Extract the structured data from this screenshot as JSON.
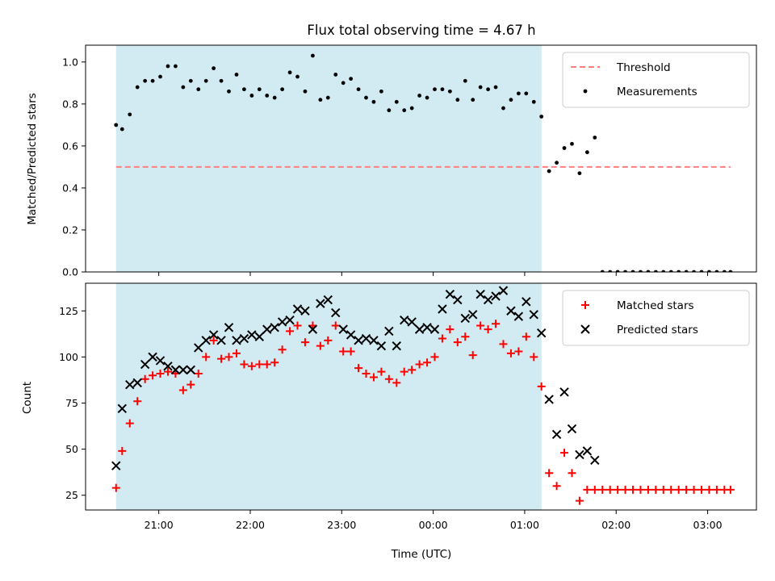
{
  "chart_data": {
    "title": "Flux total observing time = 4.67 h",
    "xlabel": "Time (UTC)",
    "x_ticks": [
      "21:00",
      "22:00",
      "23:00",
      "00:00",
      "01:00",
      "02:00",
      "03:00"
    ],
    "colors": {
      "highlight": "#add8e6",
      "threshold": "#ff7f7f",
      "measurements": "#000000",
      "matched": "#ff0000",
      "predicted": "#000000"
    },
    "panels": [
      {
        "type": "scatter",
        "ylabel": "Matched/Predicted stars",
        "ylim": [
          0,
          1.08
        ],
        "yticks": [
          "0.0",
          "0.2",
          "0.4",
          "0.6",
          "0.8",
          "1.0"
        ],
        "ytick_values": [
          0,
          0.2,
          0.4,
          0.6,
          0.8,
          1.0
        ],
        "legend_position": "top-right",
        "highlight_span": [
          "20:32",
          "01:11"
        ],
        "threshold": {
          "name": "Threshold",
          "value": 0.5,
          "x_range": [
            "20:32",
            "03:15"
          ]
        },
        "series": [
          {
            "name": "Measurements",
            "marker": "dot",
            "points": [
              [
                "20:32",
                0.7
              ],
              [
                "20:36",
                0.68
              ],
              [
                "20:41",
                0.75
              ],
              [
                "20:46",
                0.88
              ],
              [
                "20:51",
                0.91
              ],
              [
                "20:56",
                0.91
              ],
              [
                "21:01",
                0.93
              ],
              [
                "21:06",
                0.98
              ],
              [
                "21:11",
                0.98
              ],
              [
                "21:16",
                0.88
              ],
              [
                "21:21",
                0.91
              ],
              [
                "21:26",
                0.87
              ],
              [
                "21:31",
                0.91
              ],
              [
                "21:36",
                0.97
              ],
              [
                "21:41",
                0.91
              ],
              [
                "21:46",
                0.86
              ],
              [
                "21:51",
                0.94
              ],
              [
                "21:56",
                0.87
              ],
              [
                "22:01",
                0.84
              ],
              [
                "22:06",
                0.87
              ],
              [
                "22:11",
                0.84
              ],
              [
                "22:16",
                0.83
              ],
              [
                "22:21",
                0.87
              ],
              [
                "22:26",
                0.95
              ],
              [
                "22:31",
                0.93
              ],
              [
                "22:36",
                0.86
              ],
              [
                "22:41",
                1.03
              ],
              [
                "22:46",
                0.82
              ],
              [
                "22:51",
                0.83
              ],
              [
                "22:56",
                0.94
              ],
              [
                "23:01",
                0.9
              ],
              [
                "23:06",
                0.92
              ],
              [
                "23:11",
                0.87
              ],
              [
                "23:16",
                0.83
              ],
              [
                "23:21",
                0.81
              ],
              [
                "23:26",
                0.86
              ],
              [
                "23:31",
                0.77
              ],
              [
                "23:36",
                0.81
              ],
              [
                "23:41",
                0.77
              ],
              [
                "23:46",
                0.78
              ],
              [
                "23:51",
                0.84
              ],
              [
                "23:56",
                0.83
              ],
              [
                "00:01",
                0.87
              ],
              [
                "00:06",
                0.87
              ],
              [
                "00:11",
                0.86
              ],
              [
                "00:16",
                0.82
              ],
              [
                "00:21",
                0.91
              ],
              [
                "00:26",
                0.82
              ],
              [
                "00:31",
                0.88
              ],
              [
                "00:36",
                0.87
              ],
              [
                "00:41",
                0.88
              ],
              [
                "00:46",
                0.78
              ],
              [
                "00:51",
                0.82
              ],
              [
                "00:56",
                0.85
              ],
              [
                "01:01",
                0.85
              ],
              [
                "01:06",
                0.81
              ],
              [
                "01:11",
                0.74
              ],
              [
                "01:16",
                0.48
              ],
              [
                "01:21",
                0.52
              ],
              [
                "01:26",
                0.59
              ],
              [
                "01:31",
                0.61
              ],
              [
                "01:36",
                0.47
              ],
              [
                "01:41",
                0.57
              ],
              [
                "01:46",
                0.64
              ],
              [
                "01:51",
                0.0
              ],
              [
                "01:56",
                0.0
              ],
              [
                "02:01",
                0.0
              ],
              [
                "02:06",
                0.0
              ],
              [
                "02:11",
                0.0
              ],
              [
                "02:16",
                0.0
              ],
              [
                "02:21",
                0.0
              ],
              [
                "02:26",
                0.0
              ],
              [
                "02:31",
                0.0
              ],
              [
                "02:36",
                0.0
              ],
              [
                "02:41",
                0.0
              ],
              [
                "02:46",
                0.0
              ],
              [
                "02:51",
                0.0
              ],
              [
                "02:56",
                0.0
              ],
              [
                "03:01",
                0.0
              ],
              [
                "03:06",
                0.0
              ],
              [
                "03:11",
                0.0
              ],
              [
                "03:15",
                0.0
              ]
            ]
          }
        ]
      },
      {
        "type": "scatter",
        "ylabel": "Count",
        "ylim": [
          17,
          140
        ],
        "yticks": [
          "25",
          "50",
          "75",
          "100",
          "125"
        ],
        "ytick_values": [
          25,
          50,
          75,
          100,
          125
        ],
        "legend_position": "top-right",
        "highlight_span": [
          "20:32",
          "01:11"
        ],
        "series": [
          {
            "name": "Matched stars",
            "marker": "plus",
            "points": [
              [
                "20:32",
                29
              ],
              [
                "20:36",
                49
              ],
              [
                "20:41",
                64
              ],
              [
                "20:46",
                76
              ],
              [
                "20:51",
                88
              ],
              [
                "20:56",
                90
              ],
              [
                "21:01",
                91
              ],
              [
                "21:06",
                92
              ],
              [
                "21:11",
                91
              ],
              [
                "21:16",
                82
              ],
              [
                "21:21",
                85
              ],
              [
                "21:26",
                91
              ],
              [
                "21:31",
                100
              ],
              [
                "21:36",
                109
              ],
              [
                "21:41",
                99
              ],
              [
                "21:46",
                100
              ],
              [
                "21:51",
                102
              ],
              [
                "21:56",
                96
              ],
              [
                "22:01",
                95
              ],
              [
                "22:06",
                96
              ],
              [
                "22:11",
                96
              ],
              [
                "22:16",
                97
              ],
              [
                "22:21",
                104
              ],
              [
                "22:26",
                114
              ],
              [
                "22:31",
                117
              ],
              [
                "22:36",
                108
              ],
              [
                "22:41",
                117
              ],
              [
                "22:46",
                106
              ],
              [
                "22:51",
                109
              ],
              [
                "22:56",
                117
              ],
              [
                "23:01",
                103
              ],
              [
                "23:06",
                103
              ],
              [
                "23:11",
                94
              ],
              [
                "23:16",
                91
              ],
              [
                "23:21",
                89
              ],
              [
                "23:26",
                92
              ],
              [
                "23:31",
                88
              ],
              [
                "23:36",
                86
              ],
              [
                "23:41",
                92
              ],
              [
                "23:46",
                93
              ],
              [
                "23:51",
                96
              ],
              [
                "23:56",
                97
              ],
              [
                "00:01",
                100
              ],
              [
                "00:06",
                110
              ],
              [
                "00:11",
                115
              ],
              [
                "00:16",
                108
              ],
              [
                "00:21",
                111
              ],
              [
                "00:26",
                101
              ],
              [
                "00:31",
                117
              ],
              [
                "00:36",
                115
              ],
              [
                "00:41",
                118
              ],
              [
                "00:46",
                107
              ],
              [
                "00:51",
                102
              ],
              [
                "00:56",
                103
              ],
              [
                "01:01",
                111
              ],
              [
                "01:06",
                100
              ],
              [
                "01:11",
                84
              ],
              [
                "01:16",
                37
              ],
              [
                "01:21",
                30
              ],
              [
                "01:26",
                48
              ],
              [
                "01:31",
                37
              ],
              [
                "01:36",
                22
              ],
              [
                "01:41",
                28
              ],
              [
                "01:46",
                28
              ],
              [
                "01:51",
                28
              ],
              [
                "01:56",
                28
              ],
              [
                "02:01",
                28
              ],
              [
                "02:06",
                28
              ],
              [
                "02:11",
                28
              ],
              [
                "02:16",
                28
              ],
              [
                "02:21",
                28
              ],
              [
                "02:26",
                28
              ],
              [
                "02:31",
                28
              ],
              [
                "02:36",
                28
              ],
              [
                "02:41",
                28
              ],
              [
                "02:46",
                28
              ],
              [
                "02:51",
                28
              ],
              [
                "02:56",
                28
              ],
              [
                "03:01",
                28
              ],
              [
                "03:06",
                28
              ],
              [
                "03:11",
                28
              ],
              [
                "03:15",
                28
              ]
            ]
          },
          {
            "name": "Predicted stars",
            "marker": "x",
            "points": [
              [
                "20:32",
                41
              ],
              [
                "20:36",
                72
              ],
              [
                "20:41",
                85
              ],
              [
                "20:46",
                86
              ],
              [
                "20:51",
                96
              ],
              [
                "20:56",
                100
              ],
              [
                "21:01",
                98
              ],
              [
                "21:06",
                95
              ],
              [
                "21:11",
                93
              ],
              [
                "21:16",
                93
              ],
              [
                "21:21",
                93
              ],
              [
                "21:26",
                105
              ],
              [
                "21:31",
                109
              ],
              [
                "21:36",
                112
              ],
              [
                "21:41",
                109
              ],
              [
                "21:46",
                116
              ],
              [
                "21:51",
                109
              ],
              [
                "21:56",
                110
              ],
              [
                "22:01",
                112
              ],
              [
                "22:06",
                111
              ],
              [
                "22:11",
                115
              ],
              [
                "22:16",
                116
              ],
              [
                "22:21",
                119
              ],
              [
                "22:26",
                120
              ],
              [
                "22:31",
                126
              ],
              [
                "22:36",
                125
              ],
              [
                "22:41",
                115
              ],
              [
                "22:46",
                129
              ],
              [
                "22:51",
                131
              ],
              [
                "22:56",
                124
              ],
              [
                "23:01",
                115
              ],
              [
                "23:06",
                112
              ],
              [
                "23:11",
                109
              ],
              [
                "23:16",
                110
              ],
              [
                "23:21",
                109
              ],
              [
                "23:26",
                106
              ],
              [
                "23:31",
                114
              ],
              [
                "23:36",
                106
              ],
              [
                "23:41",
                120
              ],
              [
                "23:46",
                119
              ],
              [
                "23:51",
                115
              ],
              [
                "23:56",
                116
              ],
              [
                "00:01",
                115
              ],
              [
                "00:06",
                126
              ],
              [
                "00:11",
                134
              ],
              [
                "00:16",
                131
              ],
              [
                "00:21",
                121
              ],
              [
                "00:26",
                123
              ],
              [
                "00:31",
                134
              ],
              [
                "00:36",
                131
              ],
              [
                "00:41",
                133
              ],
              [
                "00:46",
                136
              ],
              [
                "00:51",
                125
              ],
              [
                "00:56",
                122
              ],
              [
                "01:01",
                130
              ],
              [
                "01:06",
                123
              ],
              [
                "01:11",
                113
              ],
              [
                "01:16",
                77
              ],
              [
                "01:21",
                58
              ],
              [
                "01:26",
                81
              ],
              [
                "01:31",
                61
              ],
              [
                "01:36",
                47
              ],
              [
                "01:41",
                49
              ],
              [
                "01:46",
                44
              ]
            ]
          }
        ]
      }
    ]
  }
}
